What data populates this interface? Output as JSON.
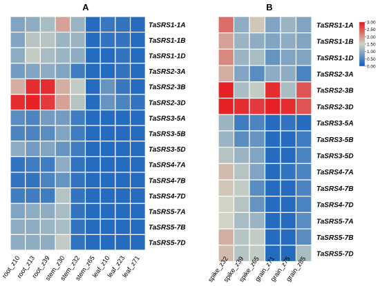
{
  "chart_data": [
    {
      "type": "heatmap",
      "title": "A",
      "rows": [
        "TaSRS1-1A",
        "TaSRS1-1B",
        "TaSRS1-1D",
        "TaSRS2-3A",
        "TaSRS2-3B",
        "TaSRS2-3D",
        "TaSRS3-5A",
        "TaSRS3-5B",
        "TaSRS3-5D",
        "TaSRS4-7A",
        "TaSRS4-7B",
        "TaSRS4-7D",
        "TaSRS5-7A",
        "TaSRS5-7B",
        "TaSRS5-7D"
      ],
      "columns": [
        "root_z10",
        "root_z13",
        "root_z39",
        "stem_z30",
        "stem_z32",
        "stem_z65",
        "leaf_z10",
        "leaf_z23",
        "leaf_z71"
      ],
      "values": [
        [
          0.9,
          1.0,
          1.2,
          1.9,
          1.1,
          0.2,
          0.35,
          0.3,
          0.2
        ],
        [
          0.9,
          1.3,
          1.3,
          1.1,
          1.1,
          0.2,
          0.3,
          0.3,
          0.2
        ],
        [
          1.0,
          1.4,
          1.2,
          1.1,
          1.0,
          0.2,
          0.2,
          0.3,
          0.2
        ],
        [
          0.8,
          0.9,
          1.0,
          0.9,
          0.4,
          0.2,
          0.2,
          0.3,
          0.2
        ],
        [
          1.8,
          2.8,
          2.8,
          1.8,
          1.4,
          0.2,
          0.7,
          0.35,
          0.2
        ],
        [
          2.8,
          2.9,
          2.7,
          1.9,
          1.3,
          0.2,
          0.7,
          0.5,
          0.3
        ],
        [
          0.6,
          0.5,
          0.8,
          0.8,
          0.4,
          0.2,
          0.2,
          0.2,
          0.2
        ],
        [
          0.5,
          0.5,
          0.6,
          0.9,
          0.4,
          0.2,
          0.2,
          0.2,
          0.2
        ],
        [
          1.0,
          0.8,
          0.9,
          0.7,
          0.4,
          0.2,
          0.2,
          0.2,
          0.2
        ],
        [
          0.3,
          0.4,
          0.4,
          1.0,
          0.3,
          0.2,
          0.2,
          0.2,
          0.2
        ],
        [
          0.3,
          0.3,
          0.5,
          0.7,
          0.3,
          0.2,
          0.2,
          0.2,
          0.2
        ],
        [
          0.4,
          0.4,
          0.4,
          1.3,
          0.3,
          0.2,
          0.2,
          0.2,
          0.2
        ],
        [
          0.9,
          1.0,
          1.0,
          1.2,
          0.3,
          0.2,
          0.2,
          0.2,
          0.2
        ],
        [
          1.0,
          1.0,
          1.1,
          1.2,
          0.3,
          0.2,
          0.2,
          0.2,
          0.2
        ],
        [
          1.0,
          1.0,
          1.0,
          1.4,
          0.3,
          0.2,
          0.2,
          0.2,
          0.2
        ]
      ]
    },
    {
      "type": "heatmap",
      "title": "B",
      "rows": [
        "TaSRS1-1A",
        "TaSRS1-1B",
        "TaSRS1-1D",
        "TaSRS2-3A",
        "TaSRS2-3B",
        "TaSRS2-3D",
        "TaSRS3-5A",
        "TaSRS3-5B",
        "TaSRS3-5D",
        "TaSRS4-7A",
        "TaSRS4-7B",
        "TaSRS4-7D",
        "TaSRS5-7A",
        "TaSRS5-7B",
        "TaSRS5-7D"
      ],
      "columns": [
        "spike_z32",
        "spike_z39",
        "spike_z65",
        "grain_z71",
        "grain_z75",
        "grain_z85"
      ],
      "values": [
        [
          2.3,
          1.0,
          1.6,
          0.9,
          1.1,
          0.9
        ],
        [
          1.9,
          1.1,
          1.0,
          0.9,
          1.0,
          0.9
        ],
        [
          2.1,
          1.1,
          1.2,
          0.7,
          0.9,
          0.9
        ],
        [
          1.8,
          0.9,
          0.6,
          1.0,
          1.0,
          0.5
        ],
        [
          2.9,
          1.2,
          1.4,
          2.8,
          1.2,
          2.5
        ],
        [
          2.9,
          2.8,
          2.7,
          2.9,
          2.8,
          2.5
        ],
        [
          1.1,
          0.4,
          0.5,
          0.2,
          0.3,
          0.2
        ],
        [
          1.1,
          0.6,
          0.7,
          0.2,
          0.2,
          0.4
        ],
        [
          1.3,
          1.1,
          0.9,
          0.2,
          0.2,
          0.5
        ],
        [
          1.7,
          1.3,
          0.9,
          0.2,
          0.3,
          0.5
        ],
        [
          1.6,
          1.4,
          0.6,
          0.2,
          0.2,
          0.5
        ],
        [
          1.5,
          1.3,
          0.7,
          0.2,
          0.2,
          0.5
        ],
        [
          1.5,
          1.2,
          1.1,
          0.2,
          0.2,
          0.6
        ],
        [
          1.8,
          1.3,
          1.4,
          0.2,
          0.2,
          0.6
        ],
        [
          1.7,
          1.3,
          1.4,
          0.2,
          0.2,
          1.2
        ]
      ],
      "colorbar": {
        "min": 0,
        "max": 3,
        "ticks": [
          "3.00",
          "2.50",
          "2.00",
          "1.50",
          "1.00",
          "0.50",
          "0.00"
        ],
        "colors": [
          "#0b5cbf",
          "#cfd4c4",
          "#e8151b"
        ]
      }
    }
  ]
}
